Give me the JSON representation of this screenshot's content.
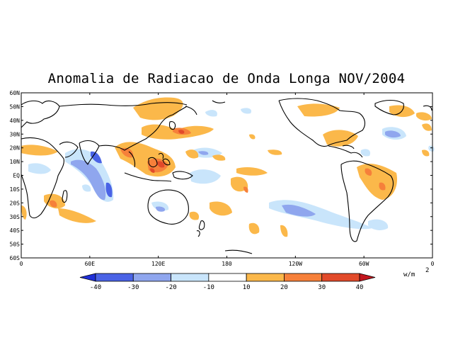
{
  "title": "Anomalia de Radiacao de Onda Longa NOV/2004",
  "lat_labels": [
    "60N",
    "50N",
    "40N",
    "30N",
    "20N",
    "10N",
    "EQ",
    "10S",
    "20S",
    "30S",
    "40S",
    "50S",
    "60S"
  ],
  "lon_labels": [
    "0",
    "60E",
    "120E",
    "180",
    "120W",
    "60W",
    "0"
  ],
  "colorbar": {
    "ticks": [
      "-40",
      "-30",
      "-20",
      "-10",
      "10",
      "20",
      "30",
      "40"
    ],
    "colors": [
      "#1f2fd8",
      "#4a63e6",
      "#8fa6ee",
      "#c9e5fb",
      "#ffffff",
      "#fbb84a",
      "#f6803a",
      "#e24a2a",
      "#c2161e"
    ],
    "unit": "w/m",
    "unit_exp": "2"
  },
  "map": {
    "lat_range": [
      -60,
      60
    ],
    "lon_range": [
      0,
      360
    ],
    "anomaly_units": "W/m2"
  }
}
